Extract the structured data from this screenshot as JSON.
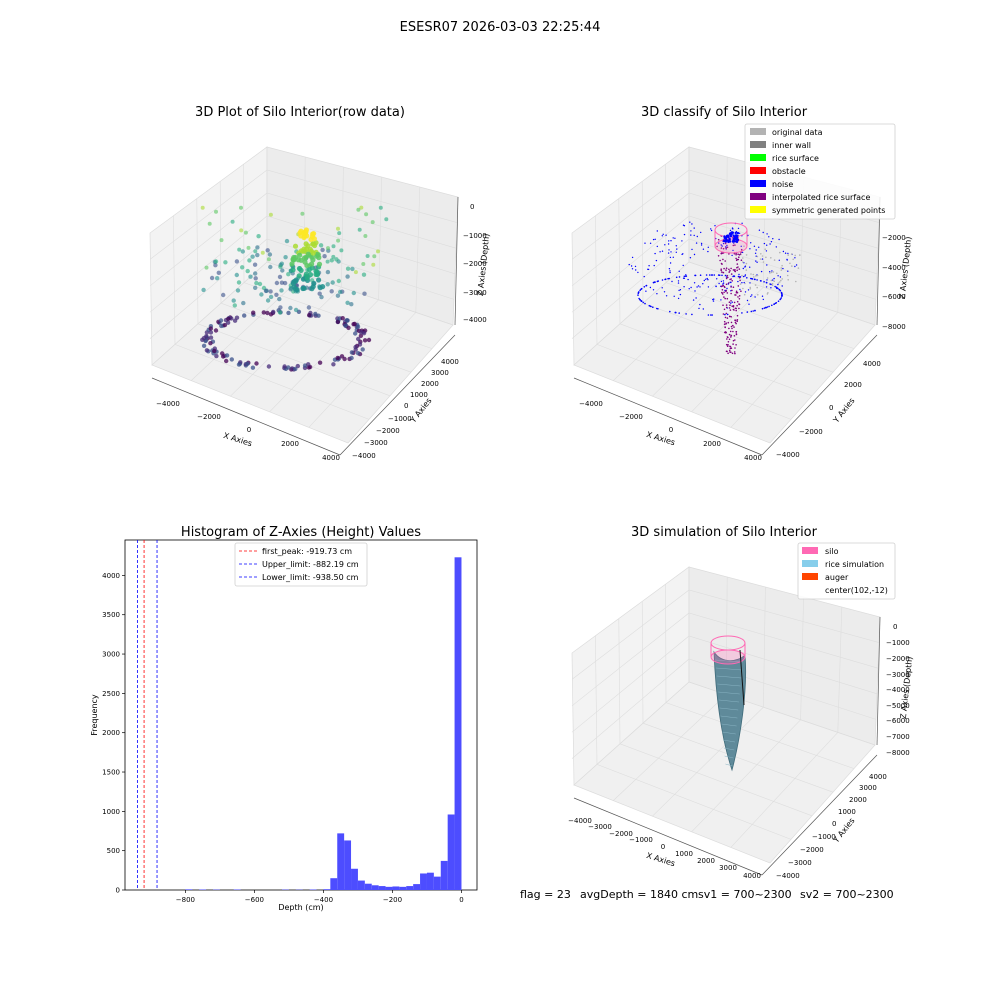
{
  "figure": {
    "suptitle": "ESESR07 2026-03-03 22:25:44"
  },
  "panel1": {
    "title": "3D Plot of Silo Interior(row data)",
    "xlabel": "X Axies",
    "ylabel": "Y Axies",
    "zlabel": "Z Axies (Depth)",
    "xticks": [
      "−4000",
      "−2000",
      "0",
      "2000",
      "4000"
    ],
    "yticks": [
      "−4000",
      "−3000",
      "−2000",
      "−1000",
      "0",
      "1000",
      "2000",
      "3000",
      "4000"
    ],
    "zticks": [
      "0",
      "−1000",
      "−2000",
      "−3000",
      "−4000"
    ],
    "colormap": "viridis"
  },
  "panel2": {
    "title": "3D classify of Silo Interior",
    "xlabel": "X Axies",
    "ylabel": "Y Axies",
    "zlabel": "Z Axies (Depth)",
    "xticks": [
      "−4000",
      "−2000",
      "0",
      "2000",
      "4000"
    ],
    "yticks": [
      "−4000",
      "−2000",
      "0",
      "2000",
      "4000"
    ],
    "zticks": [
      "−2000",
      "−4000",
      "−6000",
      "−8000"
    ],
    "legend": [
      {
        "label": "original data",
        "color": "#b3b3b3"
      },
      {
        "label": "inner wall",
        "color": "#808080"
      },
      {
        "label": "rice surface",
        "color": "#00ff00"
      },
      {
        "label": "obstacle",
        "color": "#ff0000"
      },
      {
        "label": "noise",
        "color": "#0000ff"
      },
      {
        "label": "interpolated rice surface",
        "color": "#800080"
      },
      {
        "label": "symmetric generated points",
        "color": "#ffff00"
      }
    ]
  },
  "panel3": {
    "title": "3D simulation of Silo Interior",
    "xlabel": "X Axies",
    "ylabel": "Y Axies",
    "zlabel": "Z Axies (Depth)",
    "xticks": [
      "−4000",
      "−3000",
      "−2000",
      "−1000",
      "0",
      "1000",
      "2000",
      "3000",
      "4000"
    ],
    "yticks": [
      "−4000",
      "−3000",
      "−2000",
      "−1000",
      "0",
      "1000",
      "2000",
      "3000",
      "4000"
    ],
    "zticks": [
      "0",
      "−1000",
      "−2000",
      "−3000",
      "−4000",
      "−5000",
      "−6000",
      "−7000",
      "−8000"
    ],
    "legend": [
      {
        "label": "silo",
        "color": "#ff69b4"
      },
      {
        "label": "rice simulation",
        "color": "#87ceeb"
      },
      {
        "label": "auger",
        "color": "#ff4500"
      },
      {
        "label": "center(102,-12)",
        "color": ""
      }
    ]
  },
  "footer": {
    "flag": "flag = 23",
    "avg": "avgDepth = 1840 cm",
    "sv1": "sv1 = 700~2300",
    "sv2": "sv2 = 700~2300"
  },
  "chart_data": [
    {
      "type": "histogram",
      "title": "Histogram of Z-Axies (Height) Values",
      "xlabel": "Depth (cm)",
      "ylabel": "Frequency",
      "xlim": [
        -975,
        45
      ],
      "ylim": [
        0,
        4450
      ],
      "xticks": [
        -800,
        -600,
        -400,
        -200,
        0
      ],
      "yticks": [
        0,
        500,
        1000,
        1500,
        2000,
        2500,
        3000,
        3500,
        4000
      ],
      "bar_color": "#4d4dff",
      "bin_width": 20,
      "bins": [
        {
          "x0": -800,
          "count": 8
        },
        {
          "x0": -760,
          "count": 6
        },
        {
          "x0": -720,
          "count": 5
        },
        {
          "x0": -660,
          "count": 6
        },
        {
          "x0": -520,
          "count": 5
        },
        {
          "x0": -480,
          "count": 4
        },
        {
          "x0": -440,
          "count": 6
        },
        {
          "x0": -400,
          "count": 10
        },
        {
          "x0": -380,
          "count": 150
        },
        {
          "x0": -360,
          "count": 720
        },
        {
          "x0": -340,
          "count": 630
        },
        {
          "x0": -320,
          "count": 270
        },
        {
          "x0": -300,
          "count": 120
        },
        {
          "x0": -280,
          "count": 80
        },
        {
          "x0": -260,
          "count": 60
        },
        {
          "x0": -240,
          "count": 50
        },
        {
          "x0": -220,
          "count": 40
        },
        {
          "x0": -200,
          "count": 45
        },
        {
          "x0": -180,
          "count": 40
        },
        {
          "x0": -160,
          "count": 50
        },
        {
          "x0": -140,
          "count": 75
        },
        {
          "x0": -120,
          "count": 210
        },
        {
          "x0": -100,
          "count": 220
        },
        {
          "x0": -80,
          "count": 170
        },
        {
          "x0": -60,
          "count": 370
        },
        {
          "x0": -40,
          "count": 960
        },
        {
          "x0": -20,
          "count": 4230
        }
      ],
      "vlines": [
        {
          "label": "first_peak: -919.73 cm",
          "x": -919.73,
          "color": "#ff0000"
        },
        {
          "label": "Upper_limit: -882.19 cm",
          "x": -882.19,
          "color": "#0000ff"
        },
        {
          "label": "Lower_limit: -938.50 cm",
          "x": -938.5,
          "color": "#0000ff"
        }
      ]
    }
  ]
}
